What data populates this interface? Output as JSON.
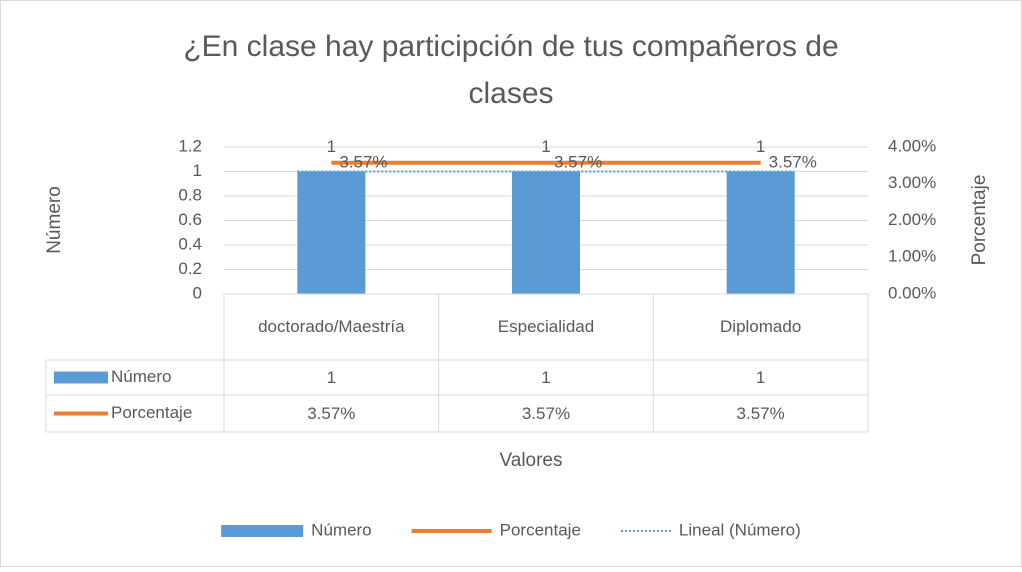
{
  "chart_data": {
    "type": "bar",
    "title": "¿En clase hay participción de tus compañeros de clases",
    "ylabel": "Número",
    "y2label": "Porcentaje",
    "xlabel": "Valores",
    "categories": [
      "doctorado/Maestría",
      "Especialidad",
      "Diplomado"
    ],
    "series": [
      {
        "name": "Número",
        "type": "bar",
        "color": "#5b9bd5",
        "values": [
          1,
          1,
          1
        ]
      },
      {
        "name": "Porcentaje",
        "type": "line",
        "axis": "y2",
        "color": "#ed7d31",
        "values": [
          3.57,
          3.57,
          3.57
        ],
        "value_labels": [
          "3.57%",
          "3.57%",
          "3.57%"
        ]
      },
      {
        "name": "Lineal (Número)",
        "type": "trendline",
        "color": "#5b9bd5",
        "values": [
          1,
          1,
          1
        ]
      }
    ],
    "ylim": [
      0,
      1.2
    ],
    "yticks": [
      0,
      0.2,
      0.4,
      0.6,
      0.8,
      1,
      1.2
    ],
    "y2lim": [
      0,
      4
    ],
    "y2ticks": [
      {
        "value": 0,
        "label": "0.00%"
      },
      {
        "value": 1,
        "label": "1.00%"
      },
      {
        "value": 2,
        "label": "2.00%"
      },
      {
        "value": 3,
        "label": "3.00%"
      },
      {
        "value": 4,
        "label": "4.00%"
      }
    ],
    "grid": true,
    "legend": "bottom",
    "data_table": true
  }
}
